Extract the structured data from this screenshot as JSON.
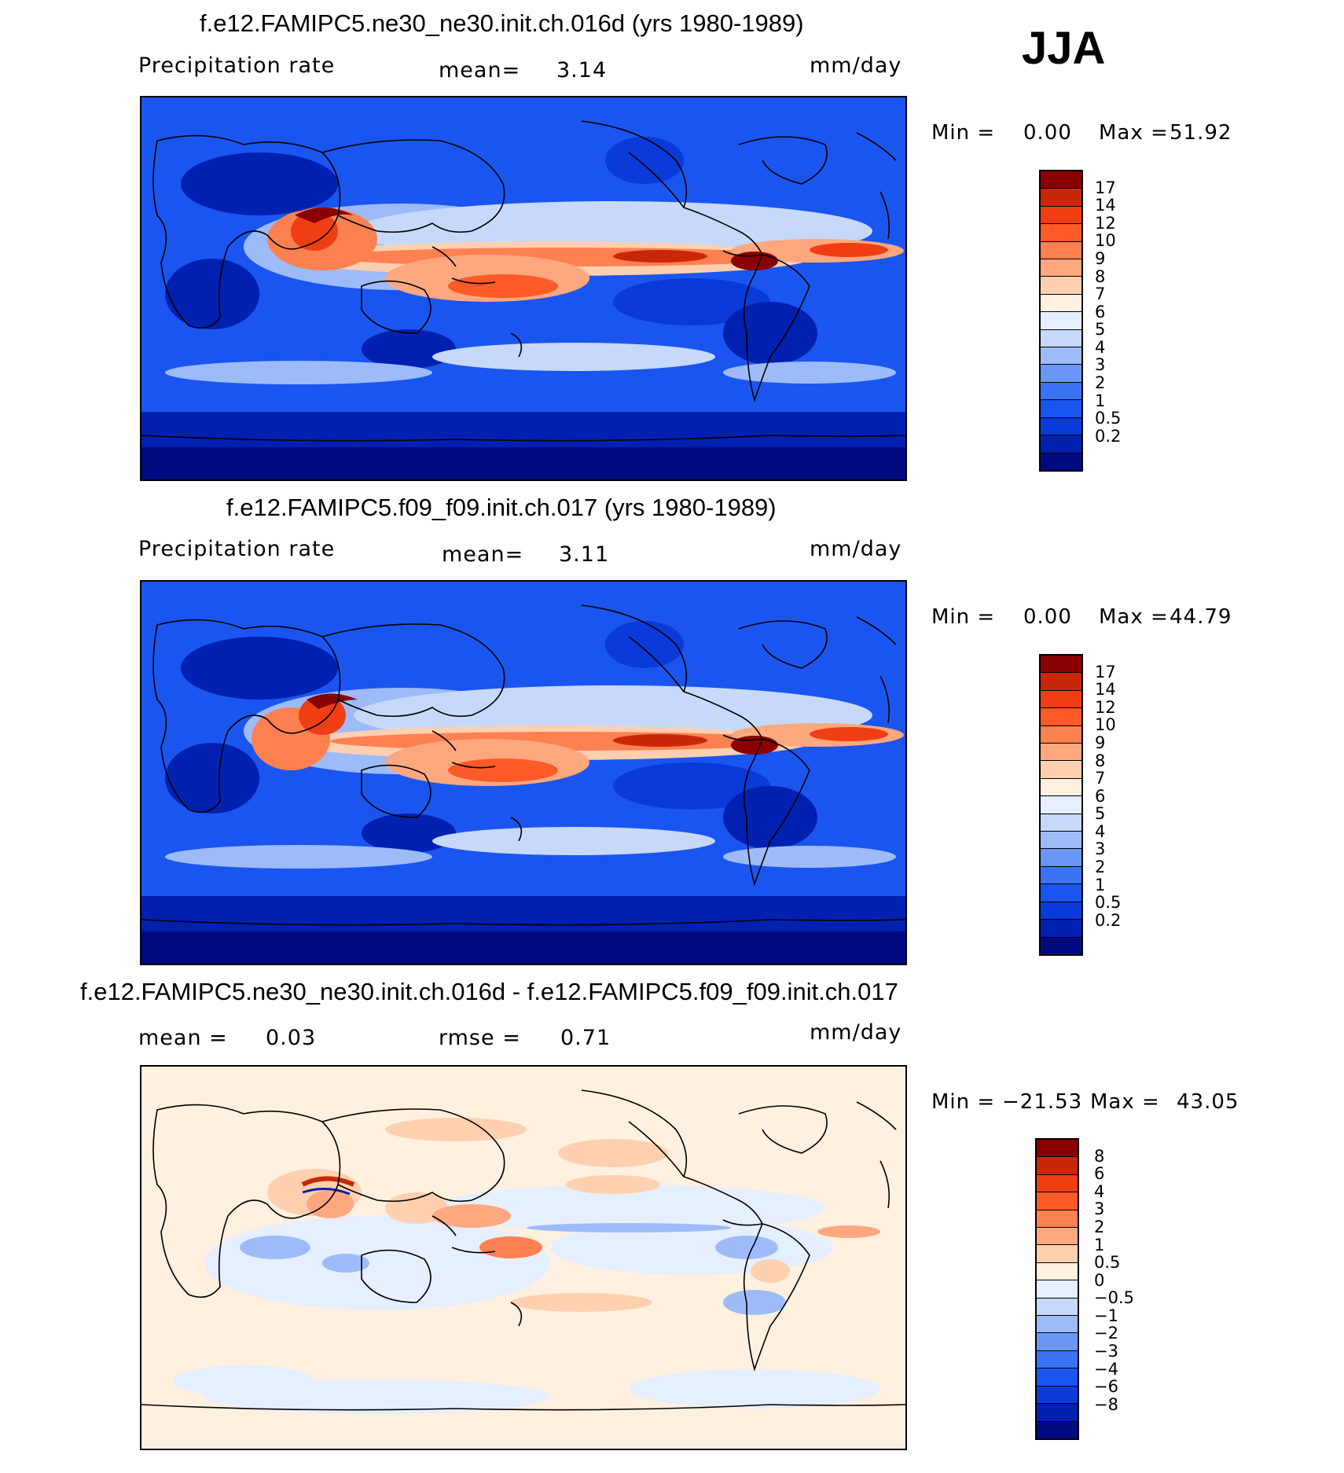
{
  "season": "JJA",
  "colors": {
    "precip": [
      "#000a80",
      "#0020b0",
      "#0a3ad8",
      "#1a55f0",
      "#3a74f5",
      "#6a97f7",
      "#9dbbf9",
      "#c6d9fb",
      "#e6efff",
      "#fff0e0",
      "#ffd0b0",
      "#ffa880",
      "#ff8050",
      "#ff5a28",
      "#f03e14",
      "#c82808",
      "#8a0000"
    ],
    "diff": [
      "#000a80",
      "#0020b0",
      "#0a3ad8",
      "#1a55f0",
      "#3a74f5",
      "#6a97f7",
      "#9dbbf9",
      "#c6d9fb",
      "#e6efff",
      "#fff0e0",
      "#ffd0b0",
      "#ffa880",
      "#ff8050",
      "#ff5a28",
      "#f03e14",
      "#c82808",
      "#8a0000"
    ],
    "land": "#000000"
  },
  "panels": [
    {
      "title": "f.e12.FAMIPC5.ne30_ne30.init.ch.016d (yrs 1980-1989)",
      "variable": "Precipitation rate",
      "stat_label": "mean=",
      "stat_value": "3.14",
      "units": "mm/day",
      "min_label": "Min =",
      "min_value": "0.00",
      "max_label": "Max =",
      "max_value": "51.92",
      "colorbar_levels": [
        "17",
        "14",
        "12",
        "10",
        "9",
        "8",
        "7",
        "6",
        "5",
        "4",
        "3",
        "2",
        "1",
        "0.5",
        "0.2"
      ]
    },
    {
      "title": "f.e12.FAMIPC5.f09_f09.init.ch.017 (yrs 1980-1989)",
      "variable": "Precipitation rate",
      "stat_label": "mean=",
      "stat_value": "3.11",
      "units": "mm/day",
      "min_label": "Min =",
      "min_value": "0.00",
      "max_label": "Max =",
      "max_value": "44.79",
      "colorbar_levels": [
        "17",
        "14",
        "12",
        "10",
        "9",
        "8",
        "7",
        "6",
        "5",
        "4",
        "3",
        "2",
        "1",
        "0.5",
        "0.2"
      ]
    },
    {
      "title": "f.e12.FAMIPC5.ne30_ne30.init.ch.016d - f.e12.FAMIPC5.f09_f09.init.ch.017",
      "stat_label": "mean =",
      "stat_value": "0.03",
      "rmse_label": "rmse =",
      "rmse_value": "0.71",
      "units": "mm/day",
      "min_label": "Min =",
      "min_value": "−21.53",
      "max_label": "Max =",
      "max_value": "43.05",
      "colorbar_levels": [
        "8",
        "6",
        "4",
        "3",
        "2",
        "1",
        "0.5",
        "0",
        "−0.5",
        "−1",
        "−2",
        "−3",
        "−4",
        "−6",
        "−8"
      ]
    }
  ]
}
